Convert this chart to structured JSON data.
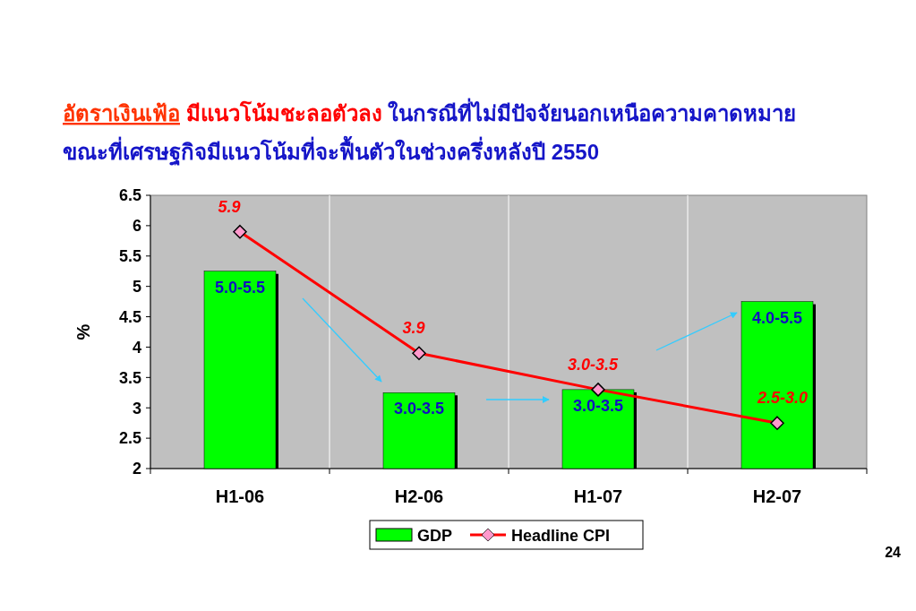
{
  "chart_data": {
    "type": "bar",
    "title": "อัตราเงินเฟ้อ มีแนวโน้มชะลอตัวลง ในกรณีที่ไม่มีปัจจัยนอกเหนือความคาดหมาย",
    "subtitle": "ขณะที่เศรษฐกิจมีแนวโน้มที่จะฟื้นตัวในช่วงครึ่งหลังปี 2550",
    "ylabel": "%",
    "categories": [
      "H1-06",
      "H2-06",
      "H1-07",
      "H2-07"
    ],
    "series": [
      {
        "name": "GDP",
        "color": "#00ff00",
        "values": [
          5.25,
          3.25,
          3.3,
          4.75
        ],
        "value_labels": [
          "5.0-5.5",
          "3.0-3.5",
          "3.0-3.5",
          "4.0-5.5"
        ]
      },
      {
        "name": "Headline CPI",
        "type": "line",
        "color": "#ff0000",
        "values": [
          5.9,
          3.9,
          3.3,
          2.75
        ],
        "value_labels": [
          "5.9",
          "3.9",
          "3.0-3.5",
          "2.5-3.0"
        ]
      }
    ],
    "ylim": [
      2,
      6.5
    ],
    "yticks": [
      2,
      2.5,
      3,
      3.5,
      4,
      4.5,
      5,
      5.5,
      6,
      6.5
    ],
    "grid": "x",
    "legend": "bottom",
    "marker": "diamond",
    "annotations": [
      "24"
    ]
  }
}
